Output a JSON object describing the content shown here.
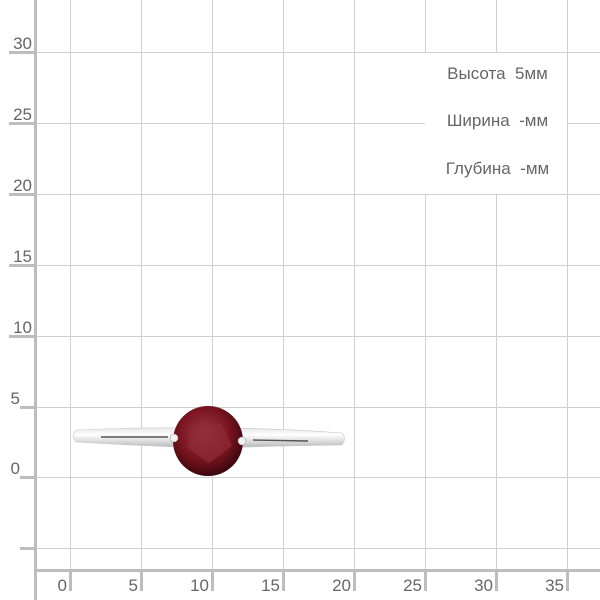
{
  "y_axis": {
    "labels": [
      "30",
      "25",
      "20",
      "15",
      "10",
      "5",
      "0"
    ]
  },
  "x_axis": {
    "labels": [
      "0",
      "5",
      "10",
      "15",
      "20",
      "25",
      "30",
      "35"
    ]
  },
  "dimensions": {
    "height": "Высота  5мм",
    "width": "Ширина  -мм",
    "depth": "Глубина  -мм"
  },
  "colors": {
    "gem": "#7a1420",
    "grid": "#cfcfcf",
    "axis": "#bdbdbd",
    "text": "#666666"
  }
}
